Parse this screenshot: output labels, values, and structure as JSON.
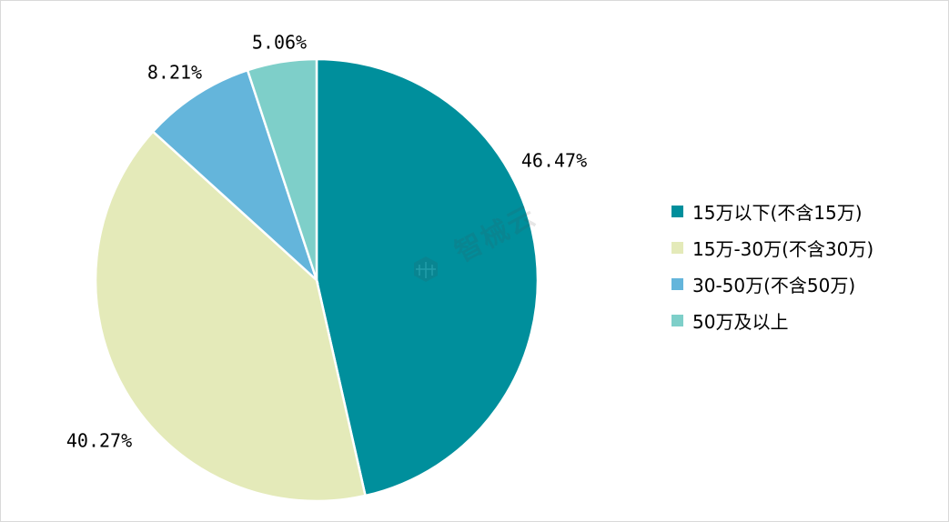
{
  "chart_data": {
    "type": "pie",
    "title": "",
    "categories": [
      "15万以下(不含15万)",
      "15万-30万(不含30万)",
      "30-50万(不含50万)",
      "50万及以上"
    ],
    "values": [
      46.47,
      40.27,
      8.21,
      5.06
    ],
    "labels": [
      "46.47%",
      "40.27%",
      "8.21%",
      "5.06%"
    ],
    "colors": [
      "#008f9c",
      "#e4eab9",
      "#64b5db",
      "#7ecfc9"
    ],
    "start_angle_deg": 0,
    "direction": "clockwise",
    "legend_position": "right"
  },
  "watermark": {
    "text": "智械云"
  }
}
